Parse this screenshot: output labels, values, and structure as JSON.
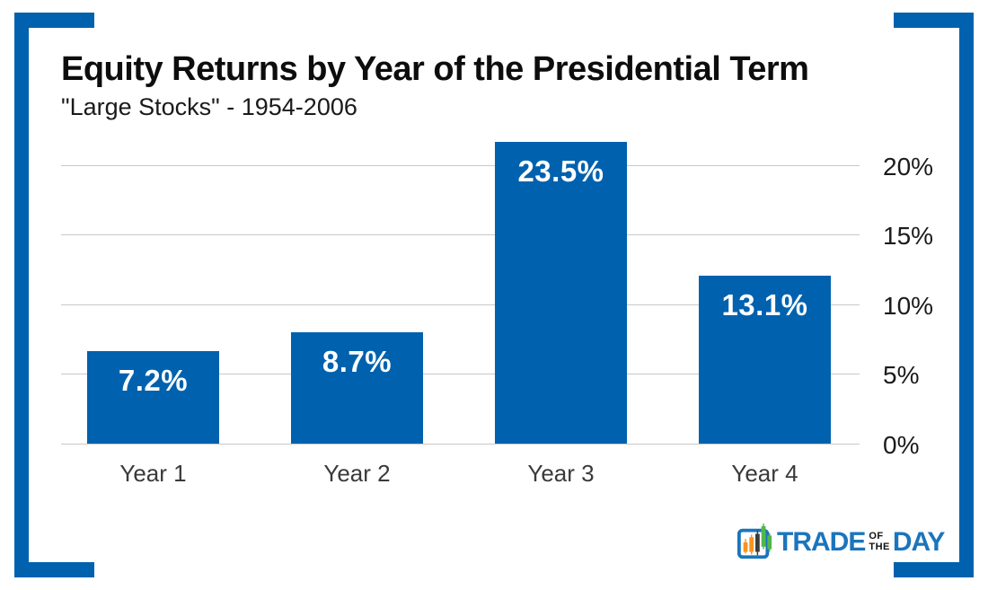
{
  "header": {
    "title": "Equity Returns by Year of the Presidential Term",
    "subtitle": "\"Large Stocks\" - 1954-2006"
  },
  "chart_data": {
    "type": "bar",
    "categories": [
      "Year 1",
      "Year 2",
      "Year 3",
      "Year 4"
    ],
    "values": [
      7.2,
      8.7,
      23.5,
      13.1
    ],
    "value_labels": [
      "7.2%",
      "8.7%",
      "23.5%",
      "13.1%"
    ],
    "title": "Equity Returns by Year of the Presidential Term",
    "subtitle": "\"Large Stocks\" - 1954-2006",
    "xlabel": "",
    "ylabel": "",
    "y_ticks": [
      "0%",
      "5%",
      "10%",
      "15%",
      "20%"
    ],
    "ylim": [
      0,
      22
    ],
    "grid": true,
    "axis_side": "right",
    "legend": "none",
    "colors": {
      "bar": "#0061AE",
      "frame": "#0061AE",
      "gridline": "#C9C9C9",
      "value_label": "#ffffff"
    }
  },
  "logo": {
    "trade": "TRADE",
    "of": "OF",
    "the": "THE",
    "day": "DAY",
    "icon": "bar-chart-icon",
    "colors": {
      "blue": "#1B75BC",
      "orange": "#F7941D",
      "green": "#52B74B",
      "dark": "#3b3b3b"
    }
  }
}
